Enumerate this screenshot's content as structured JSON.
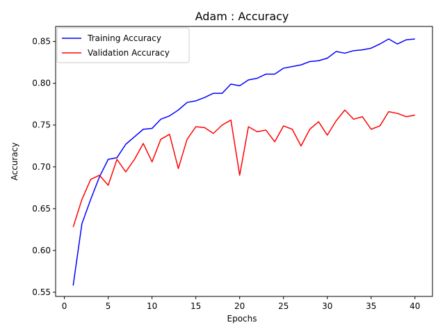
{
  "chart_data": {
    "type": "line",
    "title": "Adam : Accuracy",
    "xlabel": "Epochs",
    "ylabel": "Accuracy",
    "xlim": [
      -1,
      42
    ],
    "ylim": [
      0.545,
      0.868
    ],
    "xticks": [
      0,
      5,
      10,
      15,
      20,
      25,
      30,
      35,
      40
    ],
    "yticks": [
      0.55,
      0.6,
      0.65,
      0.7,
      0.75,
      0.8,
      0.85
    ],
    "ytick_labels": [
      "0.55",
      "0.60",
      "0.65",
      "0.70",
      "0.75",
      "0.80",
      "0.85"
    ],
    "grid": false,
    "legend_position": "top-left",
    "x": [
      1,
      2,
      3,
      4,
      5,
      6,
      7,
      8,
      9,
      10,
      11,
      12,
      13,
      14,
      15,
      16,
      17,
      18,
      19,
      20,
      21,
      22,
      23,
      24,
      25,
      26,
      27,
      28,
      29,
      30,
      31,
      32,
      33,
      34,
      35,
      36,
      37,
      38,
      39,
      40
    ],
    "series": [
      {
        "name": "Training Accuracy",
        "color": "#0000ff",
        "values": [
          0.558,
          0.632,
          0.661,
          0.688,
          0.709,
          0.711,
          0.727,
          0.736,
          0.745,
          0.746,
          0.757,
          0.761,
          0.768,
          0.777,
          0.779,
          0.783,
          0.788,
          0.788,
          0.799,
          0.797,
          0.804,
          0.806,
          0.811,
          0.811,
          0.818,
          0.82,
          0.822,
          0.826,
          0.827,
          0.83,
          0.838,
          0.836,
          0.839,
          0.84,
          0.842,
          0.847,
          0.853,
          0.847,
          0.852,
          0.853
        ]
      },
      {
        "name": "Validation Accuracy",
        "color": "#ff0000",
        "values": [
          0.628,
          0.661,
          0.685,
          0.69,
          0.678,
          0.709,
          0.694,
          0.709,
          0.728,
          0.706,
          0.733,
          0.739,
          0.698,
          0.733,
          0.748,
          0.747,
          0.74,
          0.75,
          0.756,
          0.69,
          0.748,
          0.742,
          0.744,
          0.73,
          0.749,
          0.745,
          0.725,
          0.745,
          0.754,
          0.738,
          0.755,
          0.768,
          0.757,
          0.76,
          0.745,
          0.749,
          0.766,
          0.764,
          0.76,
          0.762
        ]
      }
    ]
  }
}
